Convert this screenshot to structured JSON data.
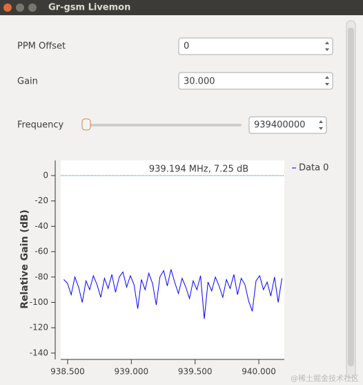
{
  "window": {
    "title": "Gr-gsm Livemon"
  },
  "form": {
    "fields": [
      {
        "label": "PPM Offset",
        "value": "0"
      },
      {
        "label": "Gain",
        "value": "30.000"
      },
      {
        "label": "Frequency",
        "value": "939400000"
      }
    ]
  },
  "chart_data": {
    "type": "line",
    "ylabel": "Relative Gain (dB)",
    "annotation": "939.194 MHz, 7.25 dB",
    "x": [
      938.47,
      938.499,
      938.528,
      938.557,
      938.586,
      938.615,
      938.644,
      938.673,
      938.702,
      938.731,
      938.76,
      938.789,
      938.818,
      938.847,
      938.876,
      938.905,
      938.934,
      938.963,
      938.992,
      939.021,
      939.05,
      939.079,
      939.108,
      939.137,
      939.166,
      939.195,
      939.224,
      939.253,
      939.282,
      939.311,
      939.34,
      939.369,
      939.398,
      939.427,
      939.456,
      939.485,
      939.514,
      939.543,
      939.572,
      939.601,
      939.63,
      939.659,
      939.688,
      939.717,
      939.746,
      939.775,
      939.804,
      939.833,
      939.862,
      939.891,
      939.92,
      939.949,
      939.978,
      940.007,
      940.036,
      940.065,
      940.094,
      940.123,
      940.152,
      940.181
    ],
    "series": [
      {
        "name": "Data 0",
        "color": "#0000ff",
        "values": [
          -82,
          -85,
          -94,
          -80,
          -88,
          -100,
          -83,
          -90,
          -79,
          -86,
          -96,
          -81,
          -89,
          -78,
          -92,
          -80,
          -76,
          -88,
          -79,
          -86,
          -105,
          -82,
          -90,
          -77,
          -85,
          -102,
          -80,
          -75,
          -87,
          -74,
          -84,
          -93,
          -81,
          -88,
          -97,
          -83,
          -90,
          -79,
          -113,
          -84,
          -91,
          -80,
          -87,
          -96,
          -82,
          -89,
          -78,
          -94,
          -81,
          -86,
          -99,
          -107,
          -83,
          -79,
          -90,
          -84,
          -95,
          -80,
          -100,
          -81
        ]
      }
    ],
    "xlim": [
      938.446,
      940.2
    ],
    "ylim": [
      -145,
      12
    ],
    "xticks": [
      {
        "value": 938.5,
        "label": "938.500"
      },
      {
        "value": 939.0,
        "label": "939.000"
      },
      {
        "value": 939.5,
        "label": "939.500"
      },
      {
        "value": 940.0,
        "label": "940.000"
      }
    ],
    "yticks": [
      0,
      -20,
      -40,
      -60,
      -80,
      -100,
      -120,
      -140
    ]
  },
  "watermark": "@稀土掘金技术社区"
}
